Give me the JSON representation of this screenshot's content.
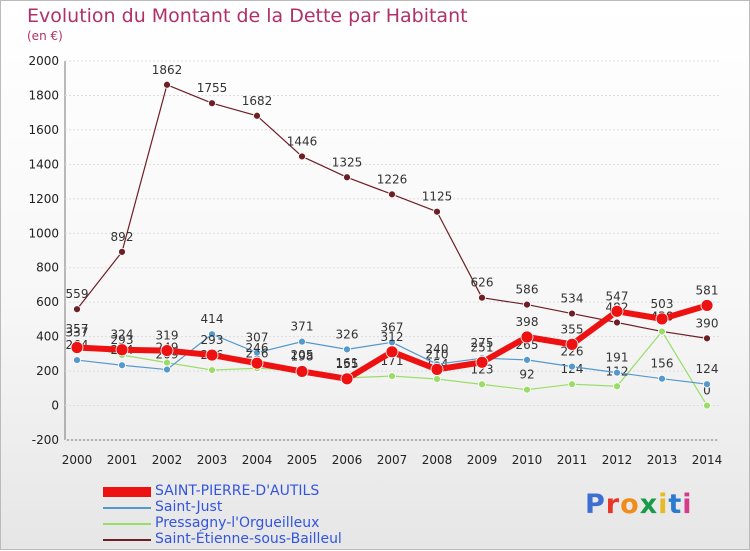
{
  "header": {
    "title": "Evolution du Montant de la Dette par Habitant",
    "unit": "(en €)"
  },
  "logo": {
    "letters": [
      "P",
      "r",
      "o",
      "x",
      "i",
      "t",
      "i"
    ],
    "colors": [
      "#3d6fd1",
      "#e8362a",
      "#f08c1a",
      "#1a9a4a",
      "#e8b923",
      "#2a7ad0",
      "#d63a8a"
    ]
  },
  "chart_data": {
    "type": "line",
    "title": "Evolution du Montant de la Dette par Habitant",
    "ylabel": "(en €)",
    "xlabel": "",
    "ylim": [
      -200,
      2000
    ],
    "yticks": [
      -200,
      0,
      200,
      400,
      600,
      800,
      1000,
      1200,
      1400,
      1600,
      1800,
      2000
    ],
    "categories": [
      "2000",
      "2001",
      "2002",
      "2003",
      "2004",
      "2005",
      "2006",
      "2007",
      "2008",
      "2009",
      "2010",
      "2011",
      "2012",
      "2013",
      "2014"
    ],
    "legend_position": "bottom-left",
    "series": [
      {
        "name": "Saint-Étienne-sous-Bailleul",
        "color": "#6e1f26",
        "width": 1.2,
        "values": [
          559,
          892,
          1862,
          1755,
          1682,
          1446,
          1325,
          1226,
          1125,
          626,
          586,
          534,
          482,
          430,
          390
        ],
        "labels": [
          "559",
          "892",
          "1862",
          "1755",
          "1682",
          "1446",
          "1325",
          "1226",
          "1125",
          "626",
          "586",
          "534",
          "482",
          "430",
          "390"
        ]
      },
      {
        "name": "Pressagny-l'Orgueilleux",
        "color": "#99dd66",
        "width": 1.2,
        "values": [
          357,
          293,
          249,
          206,
          216,
          205,
          161,
          171,
          154,
          123,
          92,
          124,
          112,
          430,
          0
        ],
        "labels": [
          "357",
          "293",
          "249",
          "206",
          "216",
          "205",
          "161",
          "171",
          "154",
          "123",
          "92",
          "124",
          "112",
          "430",
          "0"
        ]
      },
      {
        "name": "Saint-Just",
        "color": "#5599cc",
        "width": 1.2,
        "values": [
          264,
          234,
          209,
          414,
          307,
          371,
          326,
          367,
          240,
          275,
          265,
          226,
          191,
          156,
          124
        ],
        "labels": [
          "264",
          "234",
          "209",
          "414",
          "307",
          "371",
          "326",
          "367",
          "240",
          "275",
          "265",
          "226",
          "191",
          "156",
          "124"
        ]
      },
      {
        "name": "SAINT-PIERRE-D'AUTILS",
        "color": "#ee1111",
        "width": 6,
        "values": [
          337,
          324,
          319,
          293,
          246,
          198,
          155,
          312,
          210,
          251,
          398,
          355,
          547,
          503,
          581
        ],
        "labels": [
          "337",
          "324",
          "319",
          "293",
          "246",
          "198",
          "155",
          "312",
          "210",
          "251",
          "398",
          "355",
          "547",
          "503",
          "581"
        ]
      }
    ]
  },
  "legend": [
    {
      "name": "SAINT-PIERRE-D'AUTILS",
      "color": "#ee1111"
    },
    {
      "name": "Saint-Just",
      "color": "#5599cc"
    },
    {
      "name": "Pressagny-l'Orgueilleux",
      "color": "#99dd66"
    },
    {
      "name": "Saint-Étienne-sous-Bailleul",
      "color": "#6e1f26"
    }
  ]
}
